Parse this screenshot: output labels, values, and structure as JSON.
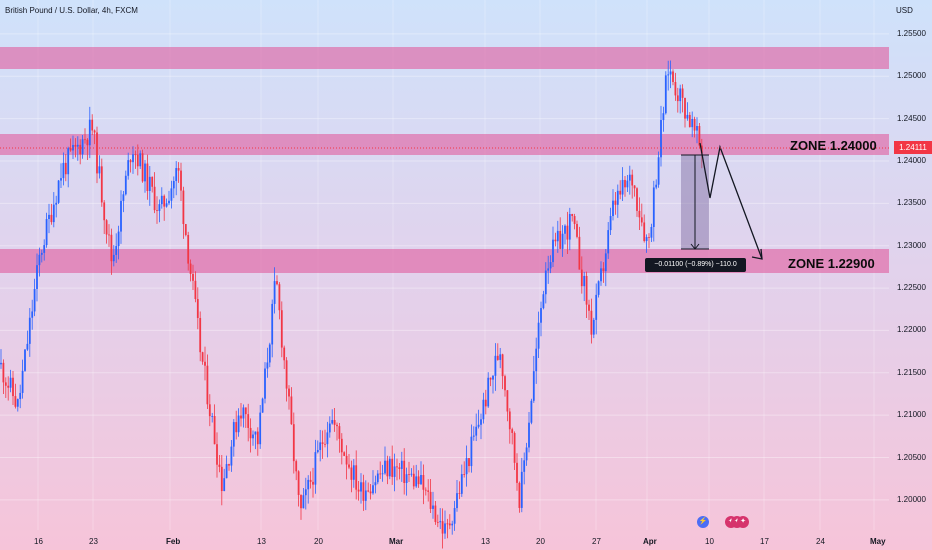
{
  "header": {
    "title": "British Pound / U.S. Dollar, 4h, FXCM",
    "currency": "USD"
  },
  "price_axis": {
    "ticks": [
      "1.25500",
      "1.25000",
      "1.24500",
      "1.24000",
      "1.23500",
      "1.23000",
      "1.22500",
      "1.22000",
      "1.21500",
      "1.21000",
      "1.20500",
      "1.20000"
    ],
    "current_price": "1.24111"
  },
  "time_axis": {
    "ticks": [
      {
        "label": "16",
        "bold": false
      },
      {
        "label": "23",
        "bold": false
      },
      {
        "label": "Feb",
        "bold": true
      },
      {
        "label": "13",
        "bold": false
      },
      {
        "label": "20",
        "bold": false
      },
      {
        "label": "Mar",
        "bold": true
      },
      {
        "label": "13",
        "bold": false
      },
      {
        "label": "20",
        "bold": false
      },
      {
        "label": "27",
        "bold": false
      },
      {
        "label": "Apr",
        "bold": true
      },
      {
        "label": "10",
        "bold": false
      },
      {
        "label": "17",
        "bold": false
      },
      {
        "label": "24",
        "bold": false
      },
      {
        "label": "May",
        "bold": true
      }
    ]
  },
  "zones": {
    "upper_label": "ZONE 1.24000",
    "lower_label": "ZONE 1.22900"
  },
  "measure": {
    "label": "−0.01100 (−0.89%) −110.0"
  },
  "colors": {
    "up_candle": "#2962ff",
    "down_candle": "#f23645",
    "zone_fill": "#e060a0",
    "price_badge": "#f23645",
    "measure_badge": "#131722"
  },
  "icons": [
    "lightning-icon",
    "us-flag-icon",
    "us-flag-icon",
    "us-flag-icon"
  ],
  "chart_data": {
    "type": "candlestick",
    "title": "British Pound / U.S. Dollar, 4h, FXCM",
    "ylim": [
      1.1955,
      1.259
    ],
    "zones": [
      {
        "low": 1.25,
        "high": 1.2525
      },
      {
        "low": 1.2398,
        "high": 1.2422
      },
      {
        "low": 1.2262,
        "high": 1.229
      }
    ],
    "key_prices": [
      {
        "date": "Jan 13",
        "price": 1.211
      },
      {
        "date": "Jan 19",
        "price": 1.239
      },
      {
        "date": "Jan 24",
        "price": 1.244
      },
      {
        "date": "Jan 31",
        "price": 1.239
      },
      {
        "date": "Feb 7",
        "price": 1.202
      },
      {
        "date": "Feb 14",
        "price": 1.226
      },
      {
        "date": "Feb 24",
        "price": 1.196
      },
      {
        "date": "Mar 8",
        "price": 1.183
      },
      {
        "date": "Mar 15",
        "price": 1.222
      },
      {
        "date": "Mar 23",
        "price": 1.233
      },
      {
        "date": "Mar 31",
        "price": 1.241
      },
      {
        "date": "Apr 4",
        "price": 1.252
      },
      {
        "date": "Apr 7",
        "price": 1.2411
      }
    ],
    "projection": [
      1.2411,
      1.2405,
      1.2335,
      1.2285
    ],
    "measure": {
      "from": 1.24,
      "to": 1.229,
      "change": "-0.01100",
      "percent": "-0.89%",
      "pips": "-110.0"
    }
  }
}
